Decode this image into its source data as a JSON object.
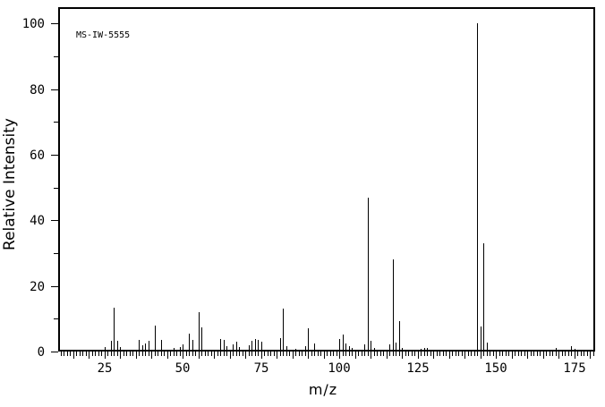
{
  "annotation": "MS-IW-5555",
  "colors": {
    "background": "#ffffff",
    "line": "#000000",
    "text": "#000000"
  },
  "chart_data": {
    "type": "bar",
    "subtype": "mass-spectrum-stick-plot",
    "title": "",
    "xlabel": "m/z",
    "ylabel": "Relative Intensity",
    "xlim": [
      10.2,
      181.6
    ],
    "ylim": [
      0,
      105
    ],
    "grid": false,
    "legend": "none",
    "x_major_tick_labels": [
      25,
      50,
      75,
      100,
      125,
      150,
      175
    ],
    "x_medium_tick_step": 5,
    "x_minor_tick_step": 1,
    "y_major_ticks": [
      0,
      20,
      40,
      60,
      80,
      100
    ],
    "y_minor_ticks": [
      10,
      30,
      50,
      70,
      90
    ],
    "peaks_format": [
      "mz",
      "relative_intensity"
    ],
    "peaks": [
      [
        25,
        1.3
      ],
      [
        27,
        3.4
      ],
      [
        28,
        13.3
      ],
      [
        29,
        3.4
      ],
      [
        30,
        1.3
      ],
      [
        36,
        3.6
      ],
      [
        37,
        1.8
      ],
      [
        38,
        2.4
      ],
      [
        39,
        3.4
      ],
      [
        41,
        8.0
      ],
      [
        43,
        3.5
      ],
      [
        47,
        1.0
      ],
      [
        49,
        1.3
      ],
      [
        50,
        2.1
      ],
      [
        52,
        5.5
      ],
      [
        53,
        3.6
      ],
      [
        55,
        12.0
      ],
      [
        56,
        7.3
      ],
      [
        62,
        3.9
      ],
      [
        63,
        3.6
      ],
      [
        64,
        1.6
      ],
      [
        66,
        2.3
      ],
      [
        67,
        3.0
      ],
      [
        68,
        1.5
      ],
      [
        71,
        1.8
      ],
      [
        72,
        3.2
      ],
      [
        73,
        3.9
      ],
      [
        74,
        3.5
      ],
      [
        75,
        3.0
      ],
      [
        81,
        4.2
      ],
      [
        82,
        13.0
      ],
      [
        83,
        1.6
      ],
      [
        86,
        0.8
      ],
      [
        89,
        1.6
      ],
      [
        90,
        7.0
      ],
      [
        92,
        2.5
      ],
      [
        100,
        3.9
      ],
      [
        101,
        5.2
      ],
      [
        102,
        2.5
      ],
      [
        103,
        1.6
      ],
      [
        104,
        1.2
      ],
      [
        108,
        2.2
      ],
      [
        109,
        47.0
      ],
      [
        110,
        3.3
      ],
      [
        111,
        1.0
      ],
      [
        116,
        2.2
      ],
      [
        117,
        28.0
      ],
      [
        118,
        2.6
      ],
      [
        119,
        9.3
      ],
      [
        120,
        1.0
      ],
      [
        126,
        0.9
      ],
      [
        127,
        1.0
      ],
      [
        128,
        1.0
      ],
      [
        144,
        100.0
      ],
      [
        145,
        7.7
      ],
      [
        146,
        33.0
      ],
      [
        147,
        2.7
      ],
      [
        169,
        1.1
      ],
      [
        174,
        1.6
      ],
      [
        175,
        0.9
      ]
    ]
  }
}
